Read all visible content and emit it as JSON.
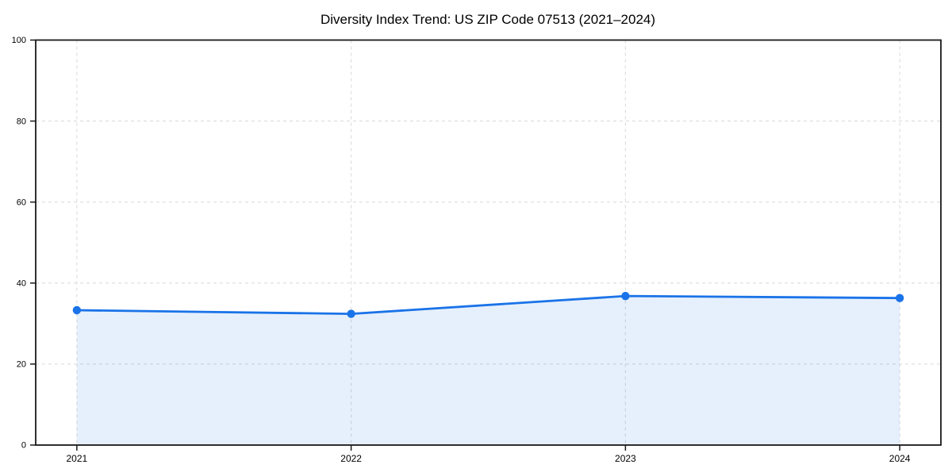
{
  "chart_data": {
    "type": "area",
    "title": "Diversity Index Trend: US ZIP Code 07513 (2021–2024)",
    "series_name": "Diversity Index",
    "x": [
      2021,
      2022,
      2023,
      2024
    ],
    "x_tick_labels": [
      "2021",
      "2022",
      "2023",
      "2024"
    ],
    "values": [
      33.3,
      32.4,
      36.8,
      36.3
    ],
    "xlabel": "",
    "ylabel": "",
    "ylim": [
      0,
      100
    ],
    "y_ticks": [
      0,
      20,
      40,
      60,
      80,
      100
    ],
    "grid": "dashed, horizontal and vertical, light gray",
    "legend_position": "none",
    "colors": {
      "line": "#1a73e8",
      "marker": "#1a73e8",
      "area_fill": "rgba(26,115,232,0.11)",
      "grid": "#dcdcdc",
      "axis": "#1a1a1a",
      "text": "#000000",
      "background": "#ffffff"
    }
  }
}
